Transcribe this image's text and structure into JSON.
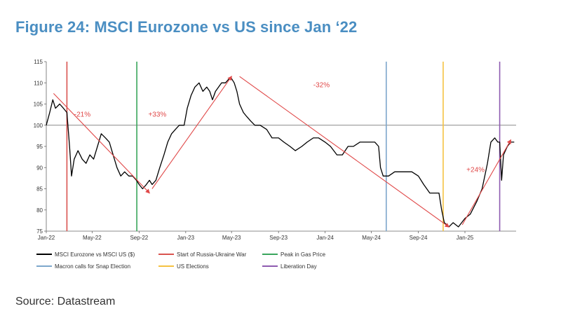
{
  "title": "Figure 24: MSCI Eurozone vs US since Jan ‘22",
  "source": "Source: Datastream",
  "chart_data": {
    "type": "line",
    "xlabel": "",
    "ylabel": "",
    "x_range": [
      "2022-01-01",
      "2025-05-15"
    ],
    "ylim": [
      75,
      115
    ],
    "y_ticks": [
      75,
      80,
      85,
      90,
      95,
      100,
      105,
      110,
      115
    ],
    "x_ticks": [
      {
        "label": "Jan-22",
        "date": "2022-01-01"
      },
      {
        "label": "May-22",
        "date": "2022-05-01"
      },
      {
        "label": "Sep-22",
        "date": "2022-09-01"
      },
      {
        "label": "Jan-23",
        "date": "2023-01-01"
      },
      {
        "label": "May-23",
        "date": "2023-05-01"
      },
      {
        "label": "Sep-23",
        "date": "2023-09-01"
      },
      {
        "label": "Jan-24",
        "date": "2024-01-01"
      },
      {
        "label": "May-24",
        "date": "2024-05-01"
      },
      {
        "label": "Sep-24",
        "date": "2024-09-01"
      },
      {
        "label": "Jan-25",
        "date": "2025-01-01"
      }
    ],
    "reference_line": {
      "y": 100,
      "color": "#888888"
    },
    "series": [
      {
        "name": "MSCI Eurozone vs MSCI US ($)",
        "color": "#000000",
        "points": [
          [
            "2022-01-01",
            100
          ],
          [
            "2022-01-10",
            103
          ],
          [
            "2022-01-18",
            106
          ],
          [
            "2022-01-25",
            104
          ],
          [
            "2022-02-05",
            105
          ],
          [
            "2022-02-15",
            104
          ],
          [
            "2022-02-24",
            103
          ],
          [
            "2022-03-03",
            95
          ],
          [
            "2022-03-08",
            88
          ],
          [
            "2022-03-15",
            92
          ],
          [
            "2022-03-25",
            94
          ],
          [
            "2022-04-05",
            92
          ],
          [
            "2022-04-15",
            91
          ],
          [
            "2022-04-25",
            93
          ],
          [
            "2022-05-05",
            92
          ],
          [
            "2022-05-15",
            95
          ],
          [
            "2022-05-25",
            98
          ],
          [
            "2022-06-05",
            97
          ],
          [
            "2022-06-15",
            96
          ],
          [
            "2022-06-25",
            93
          ],
          [
            "2022-07-05",
            90
          ],
          [
            "2022-07-15",
            88
          ],
          [
            "2022-07-25",
            89
          ],
          [
            "2022-08-05",
            88
          ],
          [
            "2022-08-15",
            88
          ],
          [
            "2022-08-25",
            87
          ],
          [
            "2022-09-01",
            86
          ],
          [
            "2022-09-10",
            85
          ],
          [
            "2022-09-20",
            86
          ],
          [
            "2022-09-28",
            87
          ],
          [
            "2022-10-05",
            86
          ],
          [
            "2022-10-15",
            87
          ],
          [
            "2022-10-25",
            90
          ],
          [
            "2022-11-05",
            93
          ],
          [
            "2022-11-15",
            96
          ],
          [
            "2022-11-25",
            98
          ],
          [
            "2022-12-05",
            99
          ],
          [
            "2022-12-15",
            100
          ],
          [
            "2022-12-28",
            100
          ],
          [
            "2023-01-05",
            104
          ],
          [
            "2023-01-15",
            107
          ],
          [
            "2023-01-25",
            109
          ],
          [
            "2023-02-05",
            110
          ],
          [
            "2023-02-15",
            108
          ],
          [
            "2023-02-25",
            109
          ],
          [
            "2023-03-05",
            108
          ],
          [
            "2023-03-12",
            106
          ],
          [
            "2023-03-20",
            108
          ],
          [
            "2023-03-28",
            109
          ],
          [
            "2023-04-05",
            110
          ],
          [
            "2023-04-15",
            110
          ],
          [
            "2023-04-25",
            111
          ],
          [
            "2023-05-01",
            111
          ],
          [
            "2023-05-08",
            110
          ],
          [
            "2023-05-15",
            108
          ],
          [
            "2023-05-22",
            105
          ],
          [
            "2023-06-01",
            103
          ],
          [
            "2023-06-10",
            102
          ],
          [
            "2023-06-20",
            101
          ],
          [
            "2023-07-01",
            100
          ],
          [
            "2023-07-15",
            100
          ],
          [
            "2023-08-01",
            99
          ],
          [
            "2023-08-15",
            97
          ],
          [
            "2023-09-01",
            97
          ],
          [
            "2023-09-15",
            96
          ],
          [
            "2023-10-01",
            95
          ],
          [
            "2023-10-15",
            94
          ],
          [
            "2023-11-01",
            95
          ],
          [
            "2023-11-15",
            96
          ],
          [
            "2023-12-01",
            97
          ],
          [
            "2023-12-15",
            97
          ],
          [
            "2024-01-01",
            96
          ],
          [
            "2024-01-15",
            95
          ],
          [
            "2024-02-01",
            93
          ],
          [
            "2024-02-15",
            93
          ],
          [
            "2024-03-01",
            95
          ],
          [
            "2024-03-15",
            95
          ],
          [
            "2024-04-01",
            96
          ],
          [
            "2024-04-15",
            96
          ],
          [
            "2024-05-01",
            96
          ],
          [
            "2024-05-10",
            96
          ],
          [
            "2024-05-20",
            95
          ],
          [
            "2024-05-25",
            90
          ],
          [
            "2024-06-01",
            88
          ],
          [
            "2024-06-15",
            88
          ],
          [
            "2024-07-01",
            89
          ],
          [
            "2024-07-15",
            89
          ],
          [
            "2024-08-01",
            89
          ],
          [
            "2024-08-15",
            89
          ],
          [
            "2024-09-01",
            88
          ],
          [
            "2024-09-15",
            86
          ],
          [
            "2024-10-01",
            84
          ],
          [
            "2024-10-15",
            84
          ],
          [
            "2024-10-25",
            84
          ],
          [
            "2024-11-01",
            80
          ],
          [
            "2024-11-08",
            77
          ],
          [
            "2024-11-20",
            76
          ],
          [
            "2024-12-01",
            77
          ],
          [
            "2024-12-15",
            76
          ],
          [
            "2025-01-01",
            78
          ],
          [
            "2025-01-15",
            79
          ],
          [
            "2025-02-01",
            82
          ],
          [
            "2025-02-15",
            85
          ],
          [
            "2025-03-01",
            91
          ],
          [
            "2025-03-10",
            96
          ],
          [
            "2025-03-20",
            97
          ],
          [
            "2025-03-28",
            96
          ],
          [
            "2025-04-02",
            96
          ],
          [
            "2025-04-07",
            87
          ],
          [
            "2025-04-12",
            93
          ],
          [
            "2025-04-22",
            95
          ],
          [
            "2025-05-01",
            96
          ],
          [
            "2025-05-10",
            96
          ]
        ]
      }
    ],
    "events": [
      {
        "name": "Start of Russia-Ukraine War",
        "date": "2022-02-24",
        "color": "#d9534f"
      },
      {
        "name": "Peak in Gas Price",
        "date": "2022-08-26",
        "color": "#3aa65c"
      },
      {
        "name": "Macron calls for Snap Election",
        "date": "2024-06-09",
        "color": "#7da7cc"
      },
      {
        "name": "US Elections",
        "date": "2024-11-05",
        "color": "#f5c242"
      },
      {
        "name": "Liberation Day",
        "date": "2025-04-02",
        "color": "#8e5bb0"
      }
    ],
    "trend_arrows": [
      {
        "label": "-21%",
        "from": [
          "2022-01-20",
          107.5
        ],
        "to": [
          "2022-09-28",
          84
        ],
        "label_at": [
          "2022-03-15",
          102
        ],
        "color": "#e04848"
      },
      {
        "label": "+33%",
        "from": [
          "2022-10-05",
          85
        ],
        "to": [
          "2023-05-01",
          111.5
        ],
        "label_at": [
          "2022-09-25",
          102
        ],
        "color": "#e04848"
      },
      {
        "label": "-32%",
        "from": [
          "2023-05-22",
          111.5
        ],
        "to": [
          "2024-11-20",
          76
        ],
        "label_at": [
          "2023-12-01",
          109
        ],
        "color": "#e04848"
      },
      {
        "label": "+24%",
        "from": [
          "2024-12-25",
          76.5
        ],
        "to": [
          "2025-05-01",
          96.5
        ],
        "label_at": [
          "2025-01-05",
          89
        ],
        "color": "#e04848"
      }
    ],
    "legend": {
      "position": "bottom",
      "rows": [
        [
          "MSCI Eurozone vs MSCI US ($)",
          "Start of Russia-Ukraine War",
          "Peak in Gas Price"
        ],
        [
          "Macron calls for Snap Election",
          "US Elections",
          "Liberation Day"
        ]
      ]
    }
  }
}
